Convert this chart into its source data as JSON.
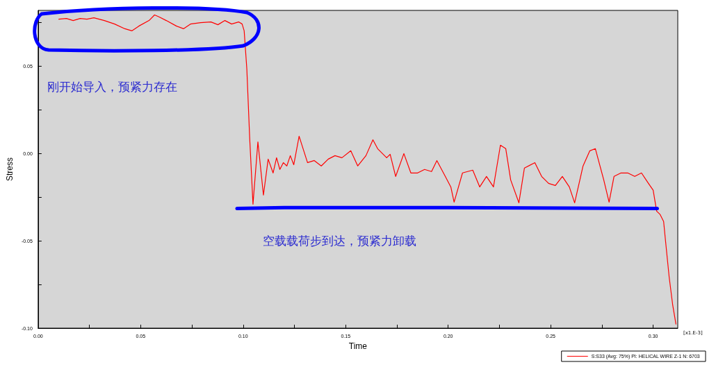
{
  "chart_data": {
    "type": "line",
    "xlabel": "Time",
    "ylabel": "Stress",
    "annotations": [
      "刚开始导入，预紧力存在",
      "空载载荷步到达，预紧力卸载",
      "[x1.E-3]"
    ],
    "x": [
      0.0101,
      0.0138,
      0.0171,
      0.0205,
      0.0238,
      0.0272,
      0.0323,
      0.0373,
      0.0423,
      0.0457,
      0.0491,
      0.0541,
      0.0568,
      0.0591,
      0.0625,
      0.0675,
      0.0709,
      0.0743,
      0.0793,
      0.0843,
      0.0877,
      0.0911,
      0.0944,
      0.0978,
      0.0995,
      0.1005,
      0.1018,
      0.1032,
      0.1048,
      0.1072,
      0.1099,
      0.1122,
      0.1146,
      0.1163,
      0.1179,
      0.1196,
      0.1213,
      0.123,
      0.1247,
      0.1273,
      0.1314,
      0.1347,
      0.1381,
      0.1415,
      0.1448,
      0.1482,
      0.1525,
      0.1559,
      0.1599,
      0.1633,
      0.1656,
      0.17,
      0.1717,
      0.1744,
      0.1784,
      0.1818,
      0.1851,
      0.1885,
      0.1919,
      0.1945,
      0.1986,
      0.2013,
      0.2029,
      0.207,
      0.212,
      0.2154,
      0.2187,
      0.2221,
      0.2255,
      0.2281,
      0.2305,
      0.2345,
      0.2372,
      0.2423,
      0.2456,
      0.249,
      0.2523,
      0.2557,
      0.2591,
      0.2617,
      0.2658,
      0.2691,
      0.2718,
      0.2759,
      0.2785,
      0.2809,
      0.2843,
      0.2876,
      0.291,
      0.2943,
      0.2977,
      0.3,
      0.3017,
      0.3034,
      0.3051,
      0.3061,
      0.3078,
      0.3095,
      0.3111
    ],
    "series": [
      {
        "name": "S:S33 (Avg: 75%) PI: HELICAL WIRE Z-1 N: 6703",
        "color": "#ff0000",
        "values": [
          0.077,
          0.0774,
          0.0762,
          0.0774,
          0.077,
          0.0778,
          0.0762,
          0.0742,
          0.0715,
          0.0703,
          0.073,
          0.0762,
          0.0794,
          0.0782,
          0.0762,
          0.073,
          0.0715,
          0.0742,
          0.075,
          0.0754,
          0.0738,
          0.0762,
          0.0742,
          0.0754,
          0.0742,
          0.0703,
          0.0484,
          0.0087,
          -0.029,
          0.0067,
          -0.0238,
          -0.0032,
          -0.0111,
          -0.0024,
          -0.0091,
          -0.0052,
          -0.0071,
          -0.0012,
          -0.0064,
          0.0099,
          -0.0052,
          -0.004,
          -0.0071,
          -0.0032,
          -0.0012,
          -0.0024,
          0.0016,
          -0.0071,
          -0.0012,
          0.0079,
          0.0028,
          -0.0024,
          -0.0004,
          -0.0131,
          0.0,
          -0.0111,
          -0.0111,
          -0.0091,
          -0.0103,
          -0.004,
          -0.0131,
          -0.0191,
          -0.0278,
          -0.0111,
          -0.0095,
          -0.0191,
          -0.0131,
          -0.0191,
          0.0048,
          0.0028,
          -0.0151,
          -0.0282,
          -0.0083,
          -0.0052,
          -0.0131,
          -0.0171,
          -0.0183,
          -0.0131,
          -0.0191,
          -0.0282,
          -0.0071,
          0.0016,
          0.0028,
          -0.0151,
          -0.0278,
          -0.0131,
          -0.0111,
          -0.0111,
          -0.0131,
          -0.0111,
          -0.0171,
          -0.021,
          -0.033,
          -0.0349,
          -0.0389,
          -0.0508,
          -0.0707,
          -0.0865,
          -0.0977
        ]
      },
      {
        "color": "#0000ff",
        "x": [
          0.097,
          0.12,
          0.2,
          0.302
        ],
        "values": [
          -0.0315,
          -0.031,
          -0.031,
          -0.0315
        ]
      }
    ],
    "xlim": [
      0,
      0.312
    ],
    "xticks": [
      {
        "value": 0,
        "label": "0.00"
      },
      {
        "value": 0.025,
        "label": null
      },
      {
        "value": 0.05,
        "label": "0.05"
      },
      {
        "value": 0.075,
        "label": null
      },
      {
        "value": 0.1,
        "label": "0.10"
      },
      {
        "value": 0.125,
        "label": null
      },
      {
        "value": 0.15,
        "label": "0.15"
      },
      {
        "value": 0.175,
        "label": null
      },
      {
        "value": 0.2,
        "label": "0.20"
      },
      {
        "value": 0.225,
        "label": null
      },
      {
        "value": 0.25,
        "label": "0.25"
      },
      {
        "value": 0.275,
        "label": null
      },
      {
        "value": 0.3,
        "label": "0.30"
      }
    ],
    "ylim": [
      -0.1,
      0.082
    ],
    "yticks": [
      {
        "value": -0.1,
        "label": "-0.10"
      },
      {
        "value": -0.075,
        "label": null
      },
      {
        "value": -0.05,
        "label": "-0.05"
      },
      {
        "value": -0.025,
        "label": null
      },
      {
        "value": 0,
        "label": "0.00"
      },
      {
        "value": 0.025,
        "label": null
      },
      {
        "value": 0.05,
        "label": "0.05"
      },
      {
        "value": 0.075,
        "label": null
      }
    ],
    "legend": "bottom right",
    "grid": false,
    "marker": "none",
    "line_style": "solid"
  }
}
